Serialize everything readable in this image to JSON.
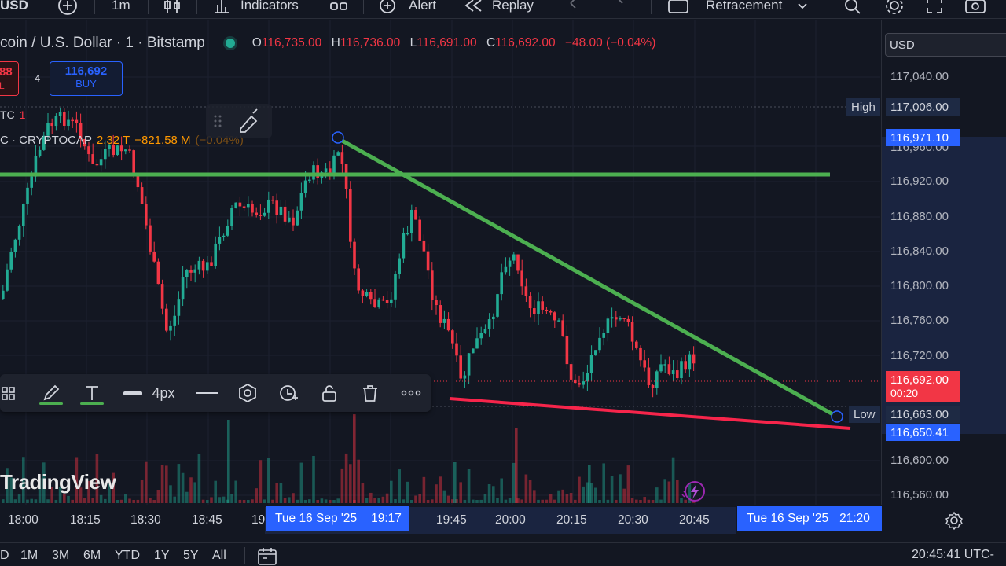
{
  "toolbar": {
    "symbol_fragment": "USD",
    "interval": "1m",
    "indicators_label": "Indicators",
    "alert_label": "Alert",
    "replay_label": "Replay",
    "retracement_label": "Retracement"
  },
  "legend": {
    "title": "coin / U.S. Dollar · 1 · Bitstamp",
    "o_key": "O",
    "o_val": "116,735.00",
    "h_key": "H",
    "h_val": "116,736.00",
    "l_key": "L",
    "l_val": "116,691.00",
    "c_key": "C",
    "c_val": "116,692.00",
    "change": "−48.00 (−0.04%)"
  },
  "trade": {
    "sell_price": "88",
    "sell_sub": "L",
    "spread": "4",
    "buy_price": "116,692",
    "buy_label": "BUY"
  },
  "indicators": {
    "ind1_name": "TC",
    "ind1_val": "1",
    "ind2_name": "C · CRYPTOCAP",
    "ind2_v1": "2.32 T",
    "ind2_v2": "−821.58 M",
    "ind2_v3": "(−0.04%)"
  },
  "draw_toolbar": {
    "width_label": "4px",
    "line_color": "#4caf50"
  },
  "watermark": "TradingView",
  "price_axis": {
    "currency": "USD",
    "ticks": [
      "117,040.00",
      "116,920.00",
      "116,880.00",
      "116,840.00",
      "116,800.00",
      "116,760.00",
      "116,720.00",
      "116,600.00",
      "116,560.00"
    ],
    "partial_tick": "116,960.00",
    "high_label": "High",
    "high_value": "117,006.00",
    "cursor_value": "116,971.10",
    "last_price": "116,692.00",
    "countdown": "00:20",
    "low_label": "Low",
    "low_value": "116,663.00",
    "line_value": "116,650.41"
  },
  "time_axis": {
    "labels": [
      "18:00",
      "18:15",
      "18:30",
      "18:45",
      "19",
      "19:45",
      "20:00",
      "20:15",
      "20:30",
      "20:45"
    ],
    "tag_left_date": "Tue 16 Sep '25",
    "tag_left_time": "19:17",
    "tag_right_date": "Tue 16 Sep '25",
    "tag_right_time": "21:20"
  },
  "bottom": {
    "ranges": [
      "D",
      "1M",
      "3M",
      "6M",
      "YTD",
      "1Y",
      "5Y",
      "All"
    ],
    "clock": "20:45:41 UTC-"
  },
  "colors": {
    "up": "#22ab94",
    "down": "#f23645",
    "trendline": "#4caf50",
    "support": "#f7254b",
    "accent": "#2962ff"
  }
}
